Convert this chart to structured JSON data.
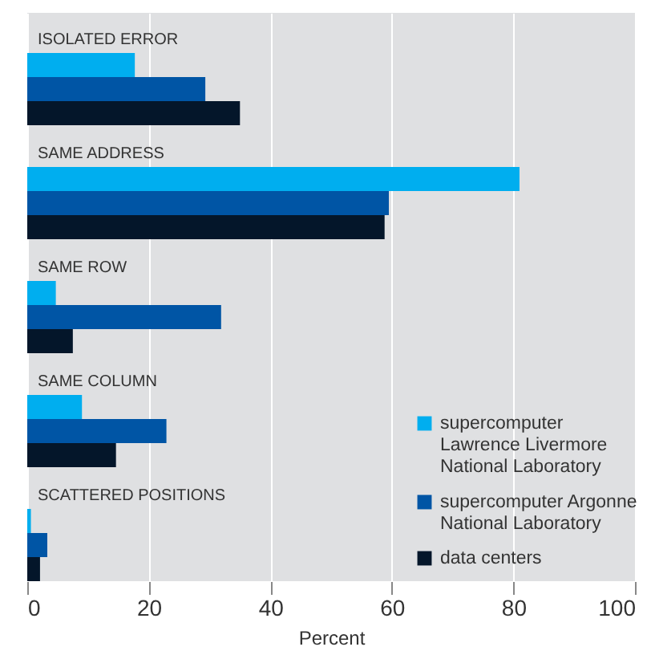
{
  "chart_data": {
    "type": "bar",
    "orientation": "horizontal",
    "categories": [
      "ISOLATED ERROR",
      "SAME ADDRESS",
      "SAME ROW",
      "SAME COLUMN",
      "SCATTERED POSITIONS"
    ],
    "series": [
      {
        "name": "supercomputer Lawrence Livermore National Laboratory",
        "color": "#00aeef",
        "values": [
          17.7,
          81,
          4.7,
          9,
          0.6
        ]
      },
      {
        "name": "supercomputer Argonne National Laboratory",
        "color": "#0055a5",
        "values": [
          29.3,
          59.5,
          31.9,
          22.9,
          3.3
        ]
      },
      {
        "name": "data centers",
        "color": "#04162a",
        "values": [
          35,
          58.8,
          7.5,
          14.6,
          2.1
        ]
      }
    ],
    "xlabel": "Percent",
    "xlim": [
      0,
      100
    ],
    "xticks": [
      0,
      20,
      40,
      60,
      80,
      100
    ],
    "grid": "x",
    "legend": "bottom right"
  }
}
